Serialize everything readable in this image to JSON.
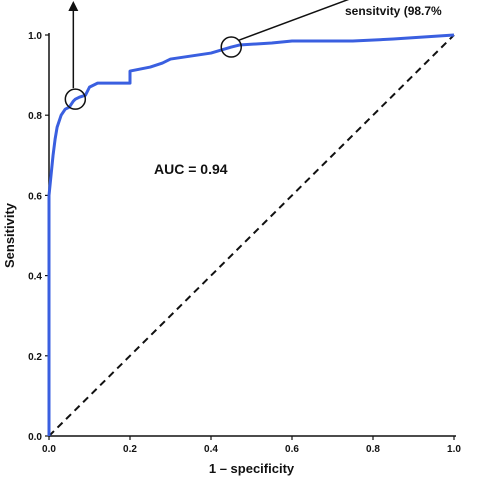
{
  "chart_data": {
    "type": "line",
    "xlabel": "1 – specificity",
    "ylabel": "Sensitivity",
    "xlim": [
      0.0,
      1.0
    ],
    "ylim": [
      0.0,
      1.0
    ],
    "x_ticks": [
      "0.0",
      "0.2",
      "0.4",
      "0.6",
      "0.8",
      "1.0"
    ],
    "y_ticks": [
      "0.0",
      "0.2",
      "0.4",
      "0.6",
      "0.8",
      "1.0"
    ],
    "annotation": "AUC = 0.94",
    "top_annotation": "sensitvity (98.7%",
    "grid": false,
    "legend": "none",
    "colors": {
      "roc": "#3a5fe0",
      "reference": "#111111"
    },
    "series": [
      {
        "x": [
          0.0,
          0.0,
          0.0,
          0.0,
          0.005,
          0.01,
          0.015,
          0.02,
          0.03,
          0.04,
          0.05,
          0.06,
          0.065,
          0.075,
          0.09,
          0.1,
          0.12,
          0.2,
          0.2,
          0.2,
          0.25,
          0.28,
          0.3,
          0.4,
          0.45,
          0.47,
          0.55,
          0.6,
          0.75,
          0.85,
          1.0
        ],
        "y": [
          0.0,
          0.3,
          0.5,
          0.6,
          0.65,
          0.7,
          0.74,
          0.77,
          0.8,
          0.815,
          0.82,
          0.835,
          0.84,
          0.845,
          0.85,
          0.87,
          0.88,
          0.88,
          0.9,
          0.91,
          0.92,
          0.93,
          0.94,
          0.955,
          0.97,
          0.975,
          0.98,
          0.985,
          0.985,
          0.99,
          1.0
        ]
      },
      {
        "x": [
          0.0,
          1.0
        ],
        "y": [
          0.0,
          1.0
        ]
      }
    ],
    "highlighted_points": [
      {
        "x": 0.065,
        "y": 0.84
      },
      {
        "x": 0.45,
        "y": 0.97
      }
    ]
  }
}
